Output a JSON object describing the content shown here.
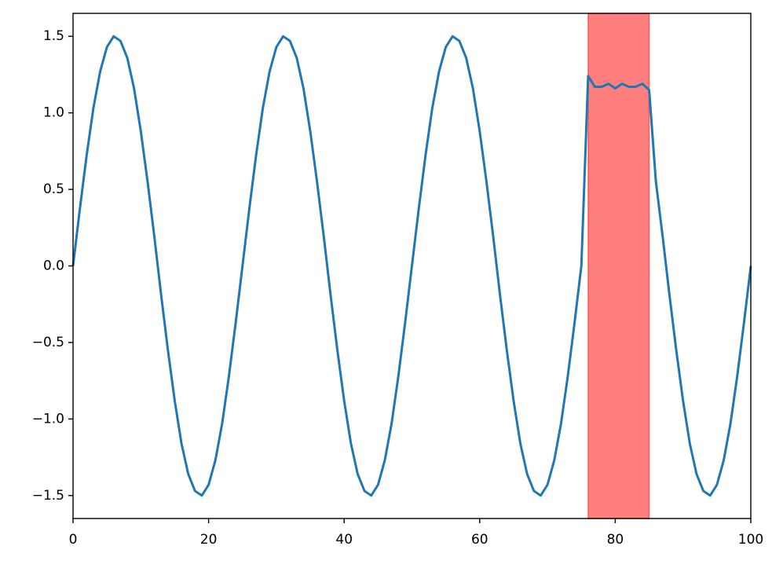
{
  "chart_data": {
    "type": "line",
    "x": [
      0,
      1,
      2,
      3,
      4,
      5,
      6,
      7,
      8,
      9,
      10,
      11,
      12,
      13,
      14,
      15,
      16,
      17,
      18,
      19,
      20,
      21,
      22,
      23,
      24,
      25,
      26,
      27,
      28,
      29,
      30,
      31,
      32,
      33,
      34,
      35,
      36,
      37,
      38,
      39,
      40,
      41,
      42,
      43,
      44,
      45,
      46,
      47,
      48,
      49,
      50,
      51,
      52,
      53,
      54,
      55,
      56,
      57,
      58,
      59,
      60,
      61,
      62,
      63,
      64,
      65,
      66,
      67,
      68,
      69,
      70,
      71,
      72,
      73,
      74,
      75,
      76,
      77,
      78,
      79,
      80,
      81,
      82,
      83,
      84,
      85,
      86,
      87,
      88,
      89,
      90,
      91,
      92,
      93,
      94,
      95,
      96,
      97,
      98,
      99,
      100
    ],
    "series": [
      {
        "color": "#1f77b4",
        "values": [
          0,
          0.37,
          0.72,
          1.03,
          1.27,
          1.43,
          1.5,
          1.47,
          1.36,
          1.16,
          0.88,
          0.55,
          0.19,
          -0.19,
          -0.55,
          -0.88,
          -1.16,
          -1.36,
          -1.47,
          -1.5,
          -1.43,
          -1.27,
          -1.03,
          -0.72,
          -0.37,
          0,
          0.37,
          0.72,
          1.03,
          1.27,
          1.43,
          1.5,
          1.47,
          1.36,
          1.16,
          0.88,
          0.55,
          0.19,
          -0.19,
          -0.55,
          -0.88,
          -1.16,
          -1.36,
          -1.47,
          -1.5,
          -1.43,
          -1.27,
          -1.03,
          -0.72,
          -0.37,
          0,
          0.37,
          0.72,
          1.03,
          1.27,
          1.43,
          1.5,
          1.47,
          1.36,
          1.16,
          0.88,
          0.55,
          0.19,
          -0.19,
          -0.55,
          -0.88,
          -1.16,
          -1.36,
          -1.47,
          -1.5,
          -1.43,
          -1.27,
          -1.03,
          -0.72,
          -0.37,
          0,
          1.24,
          1.17,
          1.17,
          1.19,
          1.16,
          1.19,
          1.17,
          1.17,
          1.19,
          1.15,
          0.55,
          0.19,
          -0.19,
          -0.55,
          -0.88,
          -1.16,
          -1.36,
          -1.47,
          -1.5,
          -1.43,
          -1.27,
          -1.03,
          -0.72,
          -0.37,
          0
        ]
      }
    ],
    "span": {
      "xmin": 76,
      "xmax": 85,
      "color": "#ff0000"
    },
    "xlim": [
      0,
      100
    ],
    "xticks": [
      0,
      20,
      40,
      60,
      80,
      100
    ],
    "ylim": [
      -1.65,
      1.65
    ],
    "yticks": [
      {
        "value": -1.5,
        "label": "−1.5"
      },
      {
        "value": -1.0,
        "label": "−1.0"
      },
      {
        "value": -0.5,
        "label": "−0.5"
      },
      {
        "value": 0,
        "label": "0.0"
      },
      0.5,
      {
        "value": 1.0,
        "label": "1.0"
      },
      1.5
    ]
  }
}
